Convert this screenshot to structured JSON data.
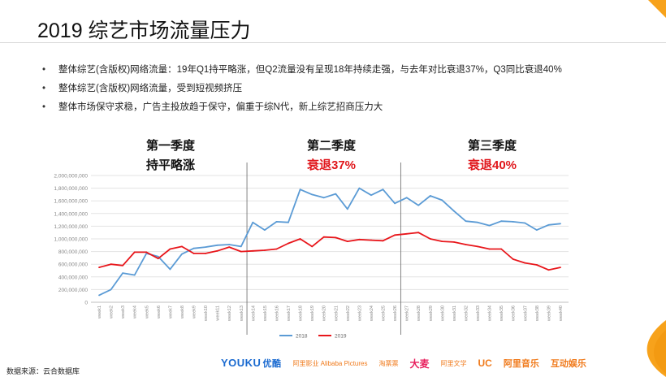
{
  "title": "2019 综艺市场流量压力",
  "bullets": [
    "整体综艺(含版权)网络流量：19年Q1持平略涨，但Q2流量没有呈现18年持续走强，与去年对比衰退37%，Q3同比衰退40%",
    "整体综艺(含版权)网络流量，受到短视频挤压",
    "整体市场保守求稳，广告主投放趋于保守，偏重于综N代，新上综艺招商压力大"
  ],
  "quarters": [
    {
      "heading": "第一季度",
      "note": "持平略涨"
    },
    {
      "heading": "第二季度",
      "note": "衰退37%"
    },
    {
      "heading": "第三季度",
      "note": "衰退40%"
    }
  ],
  "colors": {
    "series_2018": "#5b9bd5",
    "series_2019": "#e8161b",
    "accent": "#f7a21b",
    "note_red": "#e0161b"
  },
  "footer": {
    "source": "数据来源：云合数据库",
    "logos": {
      "youku": "YOUKU",
      "youku_sub": "优酷",
      "alibaba_pictures": "阿里影业 Alibaba Pictures",
      "taopiaopiao": "淘票票",
      "damai": "大麦",
      "alibaba_literature": "阿里文学",
      "uc": "UC",
      "ali_music": "阿里音乐",
      "hudong": "互动娱乐"
    }
  },
  "chart_data": {
    "type": "line",
    "x": [
      "week1",
      "week2",
      "week3",
      "week4",
      "week5",
      "week6",
      "week7",
      "week8",
      "week9",
      "week10",
      "week11",
      "week12",
      "week13",
      "week14",
      "week15",
      "week16",
      "week17",
      "week18",
      "week19",
      "week20",
      "week21",
      "week22",
      "week23",
      "week24",
      "week25",
      "week26",
      "week27",
      "week28",
      "week29",
      "week30",
      "week31",
      "week32",
      "week33",
      "week34",
      "week35",
      "week36",
      "week37",
      "week38",
      "week39",
      "week40"
    ],
    "series": [
      {
        "name": "2018",
        "color": "#5b9bd5",
        "values": [
          110000000,
          200000000,
          460000000,
          430000000,
          770000000,
          720000000,
          520000000,
          760000000,
          850000000,
          870000000,
          900000000,
          910000000,
          880000000,
          1260000000,
          1140000000,
          1270000000,
          1260000000,
          1780000000,
          1700000000,
          1650000000,
          1710000000,
          1470000000,
          1800000000,
          1690000000,
          1780000000,
          1560000000,
          1650000000,
          1530000000,
          1680000000,
          1610000000,
          1440000000,
          1280000000,
          1260000000,
          1210000000,
          1280000000,
          1270000000,
          1250000000,
          1140000000,
          1220000000,
          1240000000
        ]
      },
      {
        "name": "2019",
        "color": "#e8161b",
        "values": [
          550000000,
          600000000,
          580000000,
          790000000,
          790000000,
          690000000,
          840000000,
          880000000,
          770000000,
          770000000,
          810000000,
          870000000,
          800000000,
          810000000,
          820000000,
          840000000,
          930000000,
          1000000000,
          880000000,
          1030000000,
          1020000000,
          960000000,
          990000000,
          980000000,
          970000000,
          1060000000,
          1080000000,
          1100000000,
          1000000000,
          960000000,
          950000000,
          910000000,
          880000000,
          840000000,
          840000000,
          680000000,
          620000000,
          590000000,
          510000000,
          550000000
        ]
      }
    ],
    "y_ticks": [
      "0",
      "200,000,000",
      "400,000,000",
      "600,000,000",
      "800,000,000",
      "1,000,000,000",
      "1,200,000,000",
      "1,400,000,000",
      "1,600,000,000",
      "1,800,000,000",
      "2,000,000,000"
    ],
    "ylim": [
      0,
      2000000000
    ],
    "quarter_dividers_after": [
      "week13",
      "week26"
    ],
    "legend": {
      "placement": "bottom-center",
      "entries": [
        "2018",
        "2019"
      ]
    },
    "grid": true
  }
}
